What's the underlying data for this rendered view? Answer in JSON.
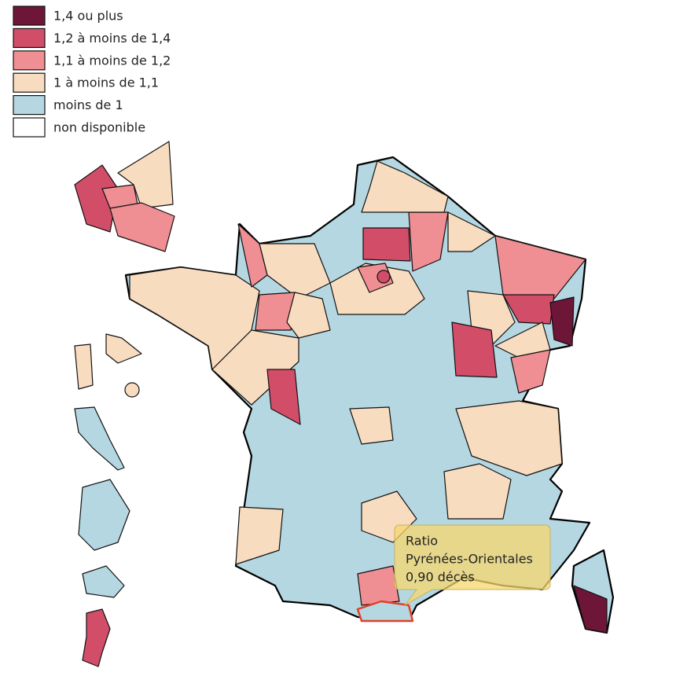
{
  "legend": {
    "items": [
      {
        "label": "1,4 ou plus",
        "color": "#6e1638"
      },
      {
        "label": "1,2 à moins de 1,4",
        "color": "#d24d68"
      },
      {
        "label": "1,1 à moins de 1,2",
        "color": "#ef8e93"
      },
      {
        "label": "1 à moins de 1,1",
        "color": "#f8dcc0"
      },
      {
        "label": "moins de 1",
        "color": "#b4d7e2"
      },
      {
        "label": "non disponible",
        "color": "#ffffff"
      }
    ]
  },
  "tooltip": {
    "title": "Ratio",
    "name": "Pyrénées-Orientales",
    "value": "0,90 décès"
  }
}
